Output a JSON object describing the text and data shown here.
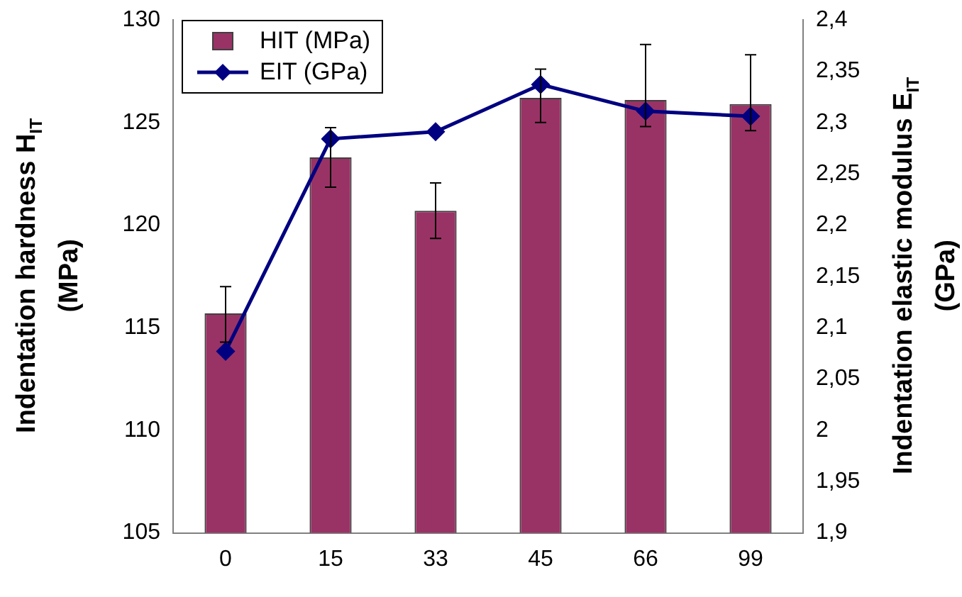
{
  "chart_data": {
    "type": "bar",
    "ylabel": "Indentation hardness H$_{IT}$ (MPa)",
    "y2label": "Indentation elastic modulus E$_{IT}$ (GPa)",
    "categories": [
      "0",
      "15",
      "33",
      "45",
      "66",
      "99"
    ],
    "series": [
      {
        "name": "HIT (MPa)",
        "color": "#993366",
        "values": [
          115.7,
          123.3,
          120.7,
          126.2,
          126.1,
          125.9
        ],
        "errors": [
          [
            114.3,
            117.0
          ],
          [
            121.85,
            124.75
          ],
          [
            119.35,
            122.05
          ],
          [
            125.0,
            127.6
          ],
          [
            124.8,
            128.8
          ],
          [
            124.6,
            128.3
          ]
        ]
      },
      {
        "name": "EIT (GPa)",
        "type": "line",
        "axis": "y2",
        "color": "#000080",
        "marker": "diamond",
        "line_style": "solid",
        "values": [
          2.077,
          2.284,
          2.291,
          2.337,
          2.311,
          2.306
        ]
      }
    ],
    "ylim": [
      105,
      130
    ],
    "yticks": [
      105,
      110,
      115,
      120,
      125,
      130
    ],
    "y2lim": [
      1.9,
      2.4
    ],
    "y2ticks": [
      {
        "value": 1.9,
        "label": "1,9"
      },
      {
        "value": 1.95,
        "label": "1,95"
      },
      2,
      {
        "value": 2.05,
        "label": "2,05"
      },
      {
        "value": 2.1,
        "label": "2,1"
      },
      {
        "value": 2.15,
        "label": "2,15"
      },
      {
        "value": 2.2,
        "label": "2,2"
      },
      {
        "value": 2.25,
        "label": "2,25"
      },
      {
        "value": 2.3,
        "label": "2,3"
      },
      {
        "value": 2.35,
        "label": "2,35"
      },
      {
        "value": 2.4,
        "label": "2,4"
      }
    ],
    "grid": false,
    "legend": "top left"
  }
}
